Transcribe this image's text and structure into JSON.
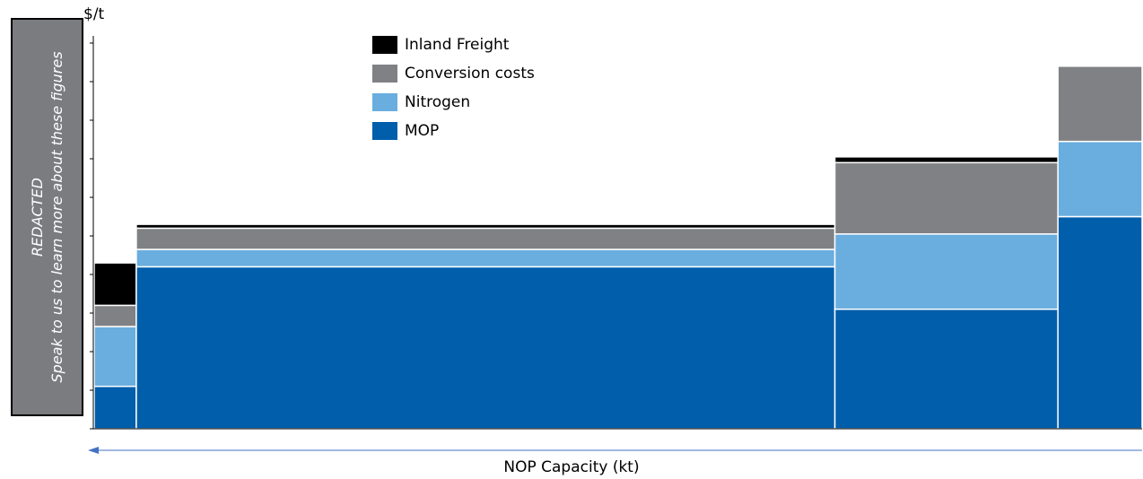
{
  "chart_data": {
    "type": "bar",
    "variant": "stacked-variable-width",
    "ylabel": "$/t",
    "xlabel": "NOP Capacity (kt)",
    "x_axis_direction": "right-to-left arrow",
    "ylim": [
      0,
      10
    ],
    "y_ticks": 10,
    "y_tick_labels": "none",
    "legend_placement": "top-center",
    "series": [
      {
        "name": "MOP",
        "color": "#005eab",
        "values": [
          1.1,
          4.2,
          3.1,
          5.5
        ]
      },
      {
        "name": "Nitrogen",
        "color": "#6aaddf",
        "values": [
          1.55,
          0.45,
          1.95,
          1.95
        ]
      },
      {
        "name": "Conversion costs",
        "color": "#808184",
        "values": [
          0.55,
          0.55,
          1.85,
          1.95
        ]
      },
      {
        "name": "Inland Freight",
        "color": "#000000",
        "values": [
          1.1,
          0.1,
          0.15,
          0.0
        ]
      }
    ],
    "bar_widths_relative": [
      1,
      16.6,
      5.3,
      2
    ]
  },
  "legend": {
    "items": [
      {
        "label": "Inland Freight",
        "color": "#000000"
      },
      {
        "label": "Conversion costs",
        "color": "#808184"
      },
      {
        "label": "Nitrogen",
        "color": "#6aaddf"
      },
      {
        "label": "MOP",
        "color": "#005eab"
      }
    ]
  },
  "y_unit": "$/t",
  "x_axis_label": "NOP Capacity (kt)",
  "redacted": {
    "title": "REDACTED",
    "subtitle": "Speak to us to learn more about these figures",
    "background": "#7a7c80"
  },
  "colors": {
    "axis": "#000000",
    "arrow": "#4472c4",
    "bar_separator": "#ffffff"
  }
}
